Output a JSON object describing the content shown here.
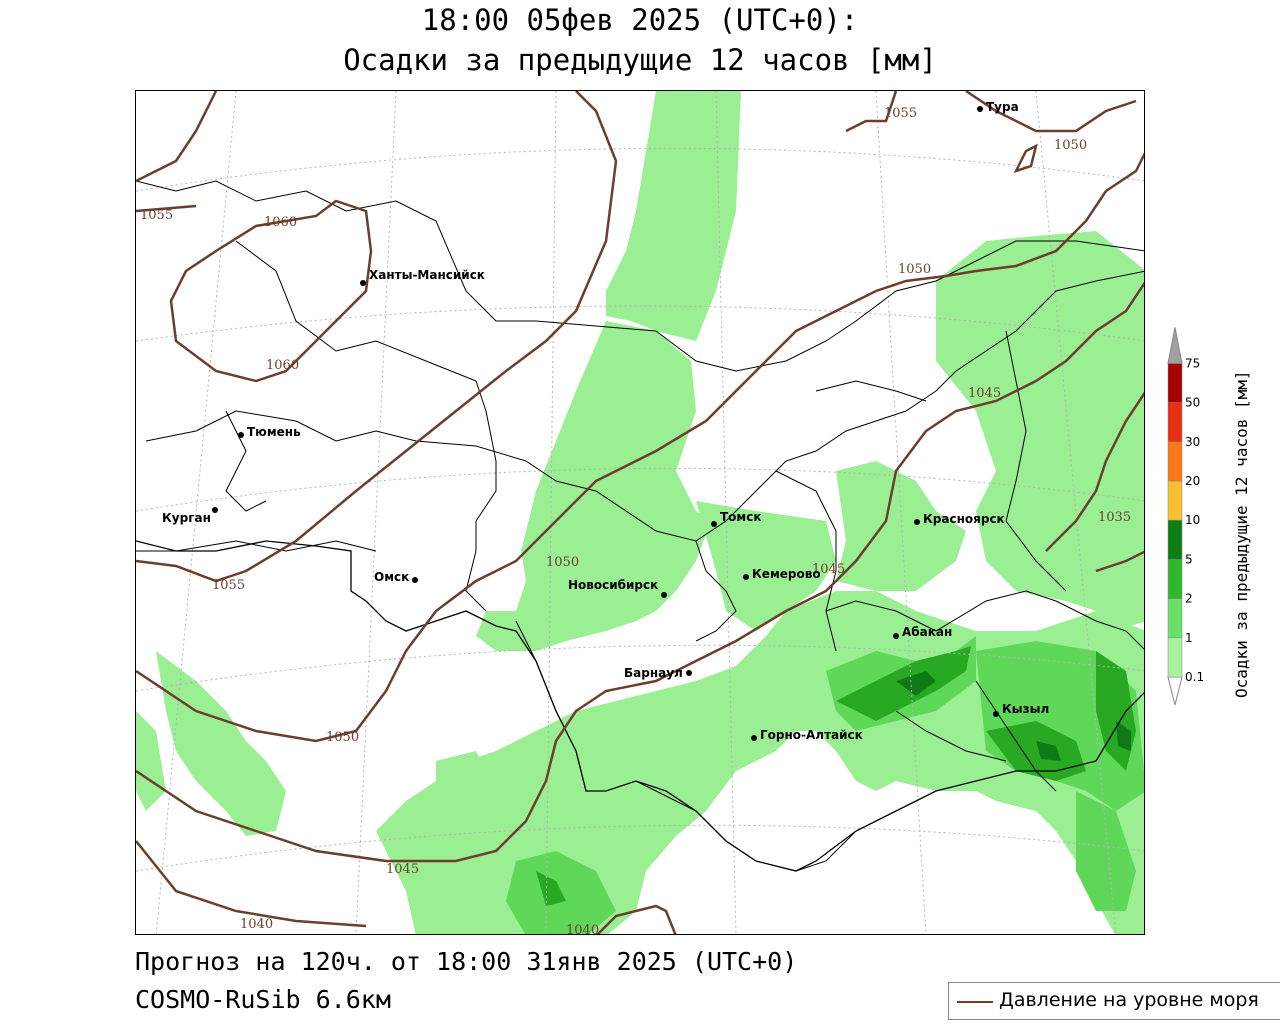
{
  "title": {
    "line1": "18:00 05фев 2025 (UTC+0):",
    "line2": "Осадки за предыдущие 12 часов [мм]"
  },
  "footer": {
    "forecast": "Прогноз на 120ч. от 18:00 31янв 2025 (UTC+0)",
    "model": "COSMO-RuSib 6.6км"
  },
  "legend": {
    "isobar_label": "Давление на уровне моря",
    "isobar_color": "#6b3e2e"
  },
  "colorbar": {
    "title": "Осадки за предыдущие 12 часов [мм]",
    "ticks": [
      "0.1",
      "1",
      "2",
      "5",
      "10",
      "20",
      "30",
      "50",
      "75"
    ],
    "colors": [
      "#ffffff",
      "#a8f2a0",
      "#6cde6a",
      "#2fb82c",
      "#0b7f14",
      "#f8c030",
      "#f87818",
      "#e83010",
      "#a80000",
      "#a0a0a0"
    ]
  },
  "cities": {
    "khanty": "Ханты-Мансийск",
    "tyumen": "Тюмень",
    "kurgan": "Курган",
    "omsk": "Омск",
    "novosibirsk": "Новосибирск",
    "barnaul": "Барнаул",
    "gorno": "Горно-Алтайск",
    "tomsk": "Томск",
    "kemerovo": "Кемерово",
    "krasnoyarsk": "Красноярск",
    "abakan": "Абакан",
    "kyzyl": "Кызыл",
    "tura": "Тура"
  },
  "isobars": {
    "l1055a": "1055",
    "l1060a": "1060",
    "l1060b": "1060",
    "l1055b": "1055",
    "l1050a": "1050",
    "l1050b": "1050",
    "l1045a": "1045",
    "l1045b": "1045",
    "l1040a": "1040",
    "l1040b": "1040",
    "l1055c": "1055",
    "l1050c": "1050",
    "l1050d": "1050",
    "l1045c": "1045",
    "l1035": "1035"
  }
}
